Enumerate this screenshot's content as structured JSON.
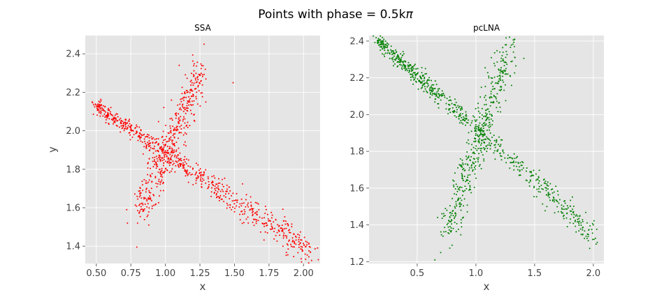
{
  "figure": {
    "suptitle": "Points with phase = 0.5k",
    "suptitle_symbol": "π"
  },
  "colors": {
    "ssa": "#ff0000",
    "pclna": "#008000",
    "background": "#e5e5e5",
    "grid": "#ffffff"
  },
  "chart_data": [
    {
      "type": "scatter",
      "title": "SSA",
      "xlabel": "x",
      "ylabel": "y",
      "xlim": [
        0.42,
        2.12
      ],
      "ylim": [
        1.31,
        2.495
      ],
      "xticks": [
        "0.50",
        "0.75",
        "1.00",
        "1.25",
        "1.50",
        "1.75",
        "2.00"
      ],
      "yticks": [
        "1.4",
        "1.6",
        "1.8",
        "2.0",
        "2.2",
        "2.4"
      ],
      "grid": true,
      "marker_color": "#ff0000",
      "approx_points": 1200,
      "structure": {
        "band_descending": {
          "from": [
            0.5,
            2.13
          ],
          "to": [
            2.05,
            1.37
          ],
          "description": "main descending diagonal band"
        },
        "band_ascending": {
          "from": [
            0.82,
            1.58
          ],
          "to": [
            1.25,
            2.3
          ],
          "description": "ascending band crossing at about (1.0, 1.9)"
        },
        "outliers": [
          [
            1.28,
            2.45
          ],
          [
            1.49,
            2.25
          ],
          [
            1.1,
            2.34
          ],
          [
            2.05,
            1.37
          ],
          [
            0.88,
            1.51
          ],
          [
            0.72,
            1.59
          ]
        ]
      }
    },
    {
      "type": "scatter",
      "title": "pcLNA",
      "xlabel": "x",
      "ylabel": "",
      "xlim": [
        0.09,
        2.09
      ],
      "ylim": [
        1.19,
        2.43
      ],
      "xticks": [
        "0.5",
        "1.0",
        "1.5",
        "2.0"
      ],
      "yticks": [
        "1.2",
        "1.4",
        "1.6",
        "1.8",
        "2.0",
        "2.2",
        "2.4"
      ],
      "grid": true,
      "marker_color": "#008000",
      "approx_points": 1200,
      "structure": {
        "band_descending": {
          "from": [
            0.17,
            2.4
          ],
          "to": [
            2.0,
            1.35
          ],
          "description": "main descending diagonal band"
        },
        "band_ascending": {
          "from": [
            0.75,
            1.35
          ],
          "to": [
            1.3,
            2.38
          ],
          "description": "ascending band crossing at about (1.0, 1.88)"
        },
        "outliers": [
          [
            0.17,
            2.4
          ],
          [
            1.33,
            2.41
          ],
          [
            0.65,
            1.21
          ],
          [
            0.7,
            1.25
          ],
          [
            2.0,
            1.4
          ],
          [
            1.95,
            1.35
          ]
        ]
      }
    }
  ]
}
